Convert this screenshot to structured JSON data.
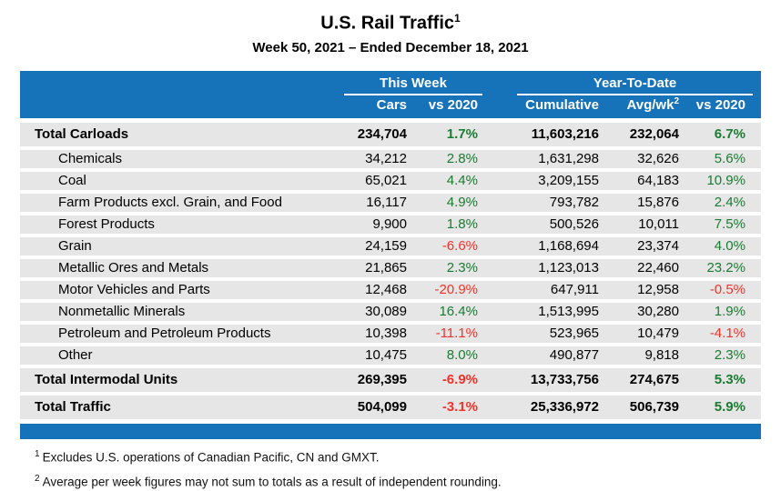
{
  "chart_data": {
    "type": "table",
    "title": "U.S. Rail Traffic",
    "title_superscript": "1",
    "subtitle": "Week 50, 2021 – Ended December 18, 2021",
    "column_groups": [
      {
        "label": "This Week",
        "columns": [
          "Cars",
          "vs 2020"
        ]
      },
      {
        "label": "Year-To-Date",
        "columns": [
          "Cumulative",
          "Avg/wk",
          "vs 2020"
        ]
      }
    ],
    "headers": {
      "group_this_week": "This Week",
      "group_year_to_date": "Year-To-Date",
      "cars": "Cars",
      "this_week_vs_2020": "vs 2020",
      "cumulative": "Cumulative",
      "avg_per_week": "Avg/wk",
      "avg_per_week_superscript": "2",
      "ytd_vs_2020": "vs 2020"
    },
    "rows": [
      {
        "label": "Total Carloads",
        "is_total": true,
        "cars": "234,704",
        "this_week_vs_2020": "1.7%",
        "cumulative": "11,603,216",
        "avg_per_week": "232,064",
        "ytd_vs_2020": "6.7%"
      },
      {
        "label": "Chemicals",
        "is_total": false,
        "cars": "34,212",
        "this_week_vs_2020": "2.8%",
        "cumulative": "1,631,298",
        "avg_per_week": "32,626",
        "ytd_vs_2020": "5.6%"
      },
      {
        "label": "Coal",
        "is_total": false,
        "cars": "65,021",
        "this_week_vs_2020": "4.4%",
        "cumulative": "3,209,155",
        "avg_per_week": "64,183",
        "ytd_vs_2020": "10.9%"
      },
      {
        "label": "Farm Products excl. Grain, and Food",
        "is_total": false,
        "cars": "16,117",
        "this_week_vs_2020": "4.9%",
        "cumulative": "793,782",
        "avg_per_week": "15,876",
        "ytd_vs_2020": "2.4%"
      },
      {
        "label": "Forest Products",
        "is_total": false,
        "cars": "9,900",
        "this_week_vs_2020": "1.8%",
        "cumulative": "500,526",
        "avg_per_week": "10,011",
        "ytd_vs_2020": "7.5%"
      },
      {
        "label": "Grain",
        "is_total": false,
        "cars": "24,159",
        "this_week_vs_2020": "-6.6%",
        "cumulative": "1,168,694",
        "avg_per_week": "23,374",
        "ytd_vs_2020": "4.0%"
      },
      {
        "label": "Metallic Ores and Metals",
        "is_total": false,
        "cars": "21,865",
        "this_week_vs_2020": "2.3%",
        "cumulative": "1,123,013",
        "avg_per_week": "22,460",
        "ytd_vs_2020": "23.2%"
      },
      {
        "label": "Motor Vehicles and Parts",
        "is_total": false,
        "cars": "12,468",
        "this_week_vs_2020": "-20.9%",
        "cumulative": "647,911",
        "avg_per_week": "12,958",
        "ytd_vs_2020": "-0.5%"
      },
      {
        "label": "Nonmetallic Minerals",
        "is_total": false,
        "cars": "30,089",
        "this_week_vs_2020": "16.4%",
        "cumulative": "1,513,995",
        "avg_per_week": "30,280",
        "ytd_vs_2020": "1.9%"
      },
      {
        "label": "Petroleum and Petroleum Products",
        "is_total": false,
        "cars": "10,398",
        "this_week_vs_2020": "-11.1%",
        "cumulative": "523,965",
        "avg_per_week": "10,479",
        "ytd_vs_2020": "-4.1%"
      },
      {
        "label": "Other",
        "is_total": false,
        "cars": "10,475",
        "this_week_vs_2020": "8.0%",
        "cumulative": "490,877",
        "avg_per_week": "9,818",
        "ytd_vs_2020": "2.3%"
      },
      {
        "label": "Total Intermodal Units",
        "is_total": true,
        "cars": "269,395",
        "this_week_vs_2020": "-6.9%",
        "cumulative": "13,733,756",
        "avg_per_week": "274,675",
        "ytd_vs_2020": "5.3%"
      },
      {
        "label": "Total Traffic",
        "is_total": true,
        "cars": "504,099",
        "this_week_vs_2020": "-3.1%",
        "cumulative": "25,336,972",
        "avg_per_week": "506,739",
        "ytd_vs_2020": "5.9%"
      }
    ]
  },
  "footnotes": [
    {
      "superscript": "1",
      "text": "Excludes U.S. operations of Canadian Pacific, CN and GMXT."
    },
    {
      "superscript": "2",
      "text": "Average per week figures may not sum to totals as a result of independent rounding."
    }
  ],
  "colors": {
    "header_blue": "#1673b9",
    "row_gray": "#e6e6e6",
    "positive_green": "#1b7b31",
    "negative_red": "#f2332b",
    "header_text": "#ffffff",
    "body_text": "#000000"
  }
}
